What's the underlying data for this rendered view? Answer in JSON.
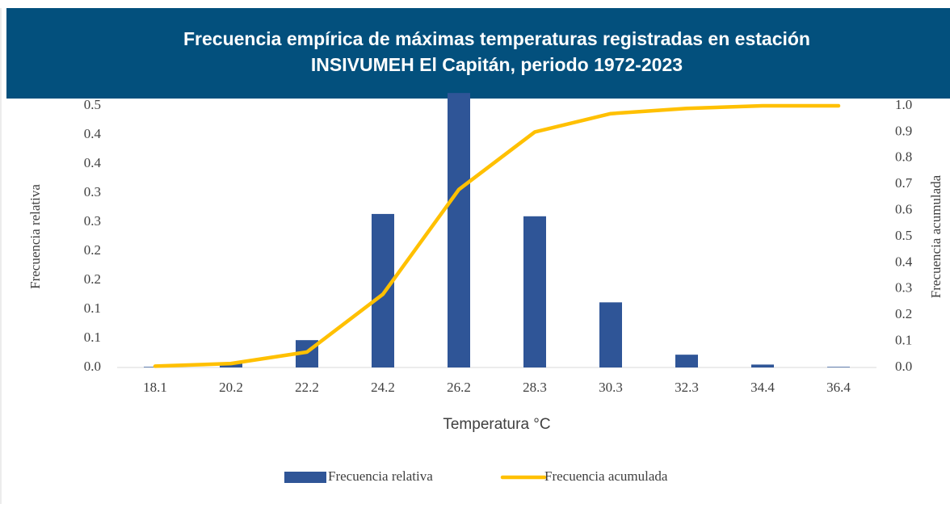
{
  "chart_data": {
    "type": "bar_line",
    "title": [
      "Frecuencia empírica de máximas temperaturas  registradas en estación",
      "INSIVUMEH El Capitán, periodo 1972-2023"
    ],
    "x_label": "Temperatura °C",
    "y_label": "Frecuencia relativa",
    "y2_label": "Frecuencia acumulada",
    "categories": [
      "18.1",
      "20.2",
      "22.2",
      "24.2",
      "26.2",
      "28.3",
      "30.3",
      "32.3",
      "34.4",
      "36.4"
    ],
    "series": [
      {
        "name": "Frecuencia relativa",
        "type": "bar",
        "color": "#2f5597",
        "values": [
          0.001,
          0.008,
          0.047,
          0.264,
          0.472,
          0.26,
          0.112,
          0.022,
          0.005,
          0.001
        ]
      },
      {
        "name": "Frecuencia acumulada",
        "type": "line",
        "axis": "y2",
        "color": "#ffc000",
        "values": [
          0.005,
          0.015,
          0.059,
          0.28,
          0.68,
          0.9,
          0.97,
          0.99,
          1.0,
          1.0
        ]
      }
    ],
    "ylim": [
      0,
      0.45
    ],
    "yticks": [
      {
        "value": 0,
        "label": "0.0"
      },
      {
        "value": 0.05,
        "label": "0.1"
      },
      0.1,
      {
        "value": 0.15,
        "label": "0.2"
      },
      0.2,
      {
        "value": 0.25,
        "label": "0.3"
      },
      0.3,
      {
        "value": 0.35,
        "label": "0.4"
      },
      0.4,
      {
        "value": 0.45,
        "label": "0.5"
      }
    ],
    "y2lim": [
      0,
      1
    ],
    "y2ticks": [
      {
        "value": 0,
        "label": "0.0"
      },
      0.1,
      0.2,
      0.3,
      0.4,
      0.5,
      0.6,
      0.7,
      0.8,
      0.9,
      {
        "value": 1,
        "label": "1.0"
      }
    ],
    "legend": "bottom"
  }
}
